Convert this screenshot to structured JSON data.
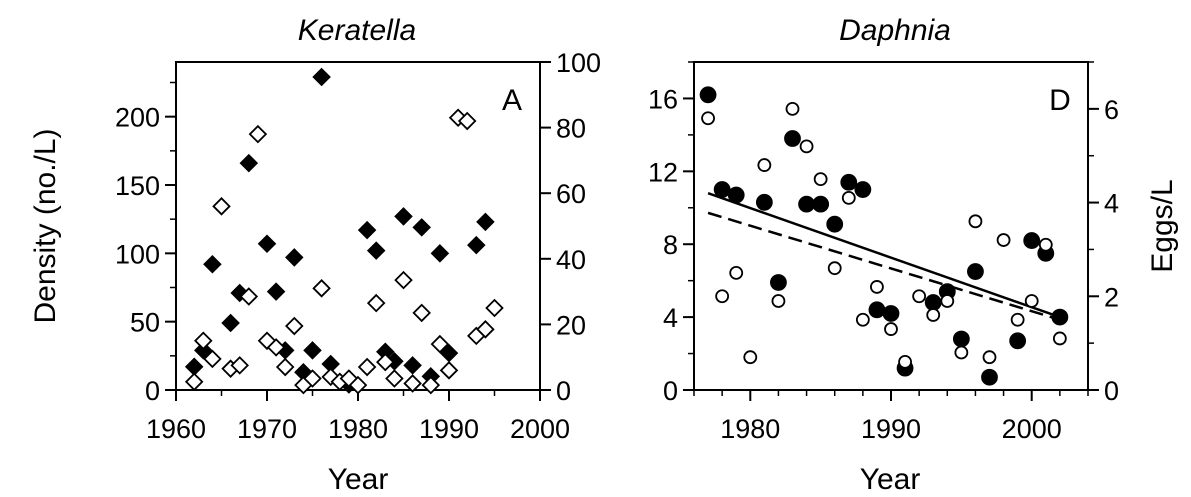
{
  "chart_data": [
    {
      "type": "scatter",
      "title": "Keratella",
      "panel_label": "A",
      "xlabel": "Year",
      "ylabel": "Density (no./L)",
      "y2label": "",
      "xlim": [
        1960,
        2000
      ],
      "ylim": [
        0,
        240
      ],
      "y2lim": [
        0,
        100
      ],
      "xticks": [
        "1960",
        "1970",
        "1980",
        "1990",
        "2000"
      ],
      "yticks": [
        "0",
        "50",
        "100",
        "150",
        "200"
      ],
      "y2ticks": [
        "0",
        "20",
        "40",
        "60",
        "80",
        "100"
      ],
      "series": [
        {
          "marker": "filled-diamond",
          "axis": "left",
          "x": [
            1962,
            1963,
            1964,
            1966,
            1967,
            1968,
            1970,
            1971,
            1972,
            1973,
            1974,
            1975,
            1976,
            1977,
            1979,
            1981,
            1982,
            1983,
            1984,
            1985,
            1986,
            1987,
            1988,
            1989,
            1990,
            1993,
            1994
          ],
          "y": [
            17,
            29,
            92,
            49,
            71,
            166,
            107,
            72,
            29,
            97,
            13,
            29,
            229,
            19,
            4,
            117,
            102,
            28,
            21,
            127,
            18,
            119,
            10,
            100,
            27,
            106,
            123
          ]
        },
        {
          "marker": "open-diamond",
          "axis": "right",
          "x": [
            1962,
            1963,
            1964,
            1965,
            1966,
            1967,
            1968,
            1969,
            1970,
            1971,
            1972,
            1973,
            1974,
            1975,
            1976,
            1977,
            1978,
            1979,
            1980,
            1981,
            1982,
            1983,
            1984,
            1985,
            1986,
            1987,
            1988,
            1989,
            1990,
            1991,
            1992,
            1993,
            1994,
            1995
          ],
          "y": [
            2.5,
            15,
            9.5,
            56,
            6.5,
            7.5,
            28.5,
            78,
            15,
            13,
            7,
            19.5,
            1.5,
            3.5,
            31,
            4,
            2.5,
            3.5,
            1.5,
            7,
            26.5,
            8.5,
            3.5,
            33.5,
            2,
            23.5,
            1.5,
            14,
            6,
            83,
            82,
            16.5,
            18.5,
            25
          ]
        }
      ]
    },
    {
      "type": "scatter",
      "title": "Daphnia",
      "panel_label": "D",
      "xlabel": "Year",
      "ylabel": "",
      "y2label": "Eggs/L",
      "xlim": [
        1976,
        2004
      ],
      "ylim": [
        0,
        18
      ],
      "y2lim": [
        0,
        7
      ],
      "xticks": [
        "1980",
        "1990",
        "2000"
      ],
      "yticks": [
        "0",
        "4",
        "8",
        "12",
        "16"
      ],
      "y2ticks": [
        "0",
        "2",
        "4",
        "6"
      ],
      "series": [
        {
          "marker": "filled-circle",
          "axis": "left",
          "x": [
            1977,
            1978,
            1979,
            1981,
            1982,
            1983,
            1984,
            1985,
            1986,
            1987,
            1988,
            1989,
            1990,
            1991,
            1993,
            1994,
            1995,
            1996,
            1997,
            1999,
            2000,
            2001,
            2002
          ],
          "y": [
            16.2,
            11,
            10.7,
            10.3,
            5.9,
            13.8,
            10.2,
            10.2,
            9.1,
            11.4,
            11,
            4.4,
            4.2,
            1.2,
            4.8,
            5.4,
            2.8,
            6.5,
            0.7,
            2.7,
            8.2,
            7.5,
            4
          ],
          "fit": {
            "style": "solid",
            "x": [
              1977,
              2002
            ],
            "y": [
              10.8,
              4.0
            ]
          }
        },
        {
          "marker": "open-circle",
          "axis": "right",
          "x": [
            1977,
            1978,
            1979,
            1980,
            1981,
            1982,
            1983,
            1984,
            1985,
            1986,
            1987,
            1988,
            1989,
            1990,
            1991,
            1992,
            1993,
            1994,
            1995,
            1996,
            1997,
            1998,
            1999,
            2000,
            2001,
            2002
          ],
          "y": [
            5.8,
            2.0,
            2.5,
            0.7,
            4.8,
            1.9,
            6.0,
            5.2,
            4.5,
            2.6,
            4.1,
            1.5,
            2.2,
            1.3,
            0.6,
            2.0,
            1.6,
            1.9,
            0.8,
            3.6,
            0.7,
            3.2,
            1.5,
            1.9,
            3.1,
            1.1
          ],
          "fit": {
            "style": "dashed",
            "x": [
              1977,
              2002
            ],
            "y": [
              3.78,
              1.5
            ]
          }
        }
      ]
    }
  ]
}
